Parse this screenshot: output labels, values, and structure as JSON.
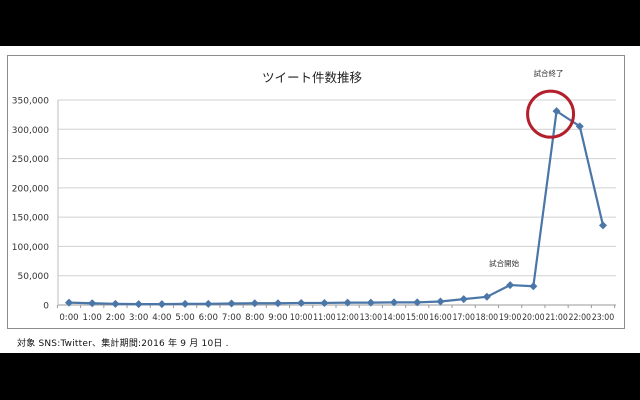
{
  "chart_data": {
    "type": "line",
    "title": "ツイート件数推移",
    "xlabel": "",
    "ylabel": "",
    "ylim": [
      0,
      350000
    ],
    "yticks": [
      0,
      50000,
      100000,
      150000,
      200000,
      250000,
      300000,
      350000
    ],
    "ytick_labels": [
      "0",
      "50,000",
      "100,000",
      "150,000",
      "200,000",
      "250,000",
      "300,000",
      "350,000"
    ],
    "grid": true,
    "legend": "none",
    "categories": [
      "0:00",
      "1:00",
      "2:00",
      "3:00",
      "4:00",
      "5:00",
      "6:00",
      "7:00",
      "8:00",
      "9:00",
      "10:00",
      "11:00",
      "12:00",
      "13:00",
      "14:00",
      "15:00",
      "16:00",
      "17:00",
      "18:00",
      "19:00",
      "20:00",
      "21:00",
      "22:00",
      "23:00"
    ],
    "series": [
      {
        "name": "ツイート件数",
        "color": "#4a76a8",
        "values": [
          4000,
          3000,
          2000,
          1500,
          1500,
          2000,
          2000,
          2500,
          3000,
          3000,
          3500,
          3500,
          4000,
          4000,
          4500,
          4500,
          6000,
          10000,
          14000,
          34000,
          32000,
          331000,
          305000,
          136000
        ]
      }
    ],
    "annotations": [
      {
        "text": "試合開始",
        "category": "19:00"
      },
      {
        "text": "試合終了",
        "category": "21:00",
        "highlight": "red-circle",
        "highlight_color": "#b3202b"
      }
    ]
  },
  "footnote": "対象 SNS:Twitter、集計期間:2016 年 9 月 10日 ."
}
